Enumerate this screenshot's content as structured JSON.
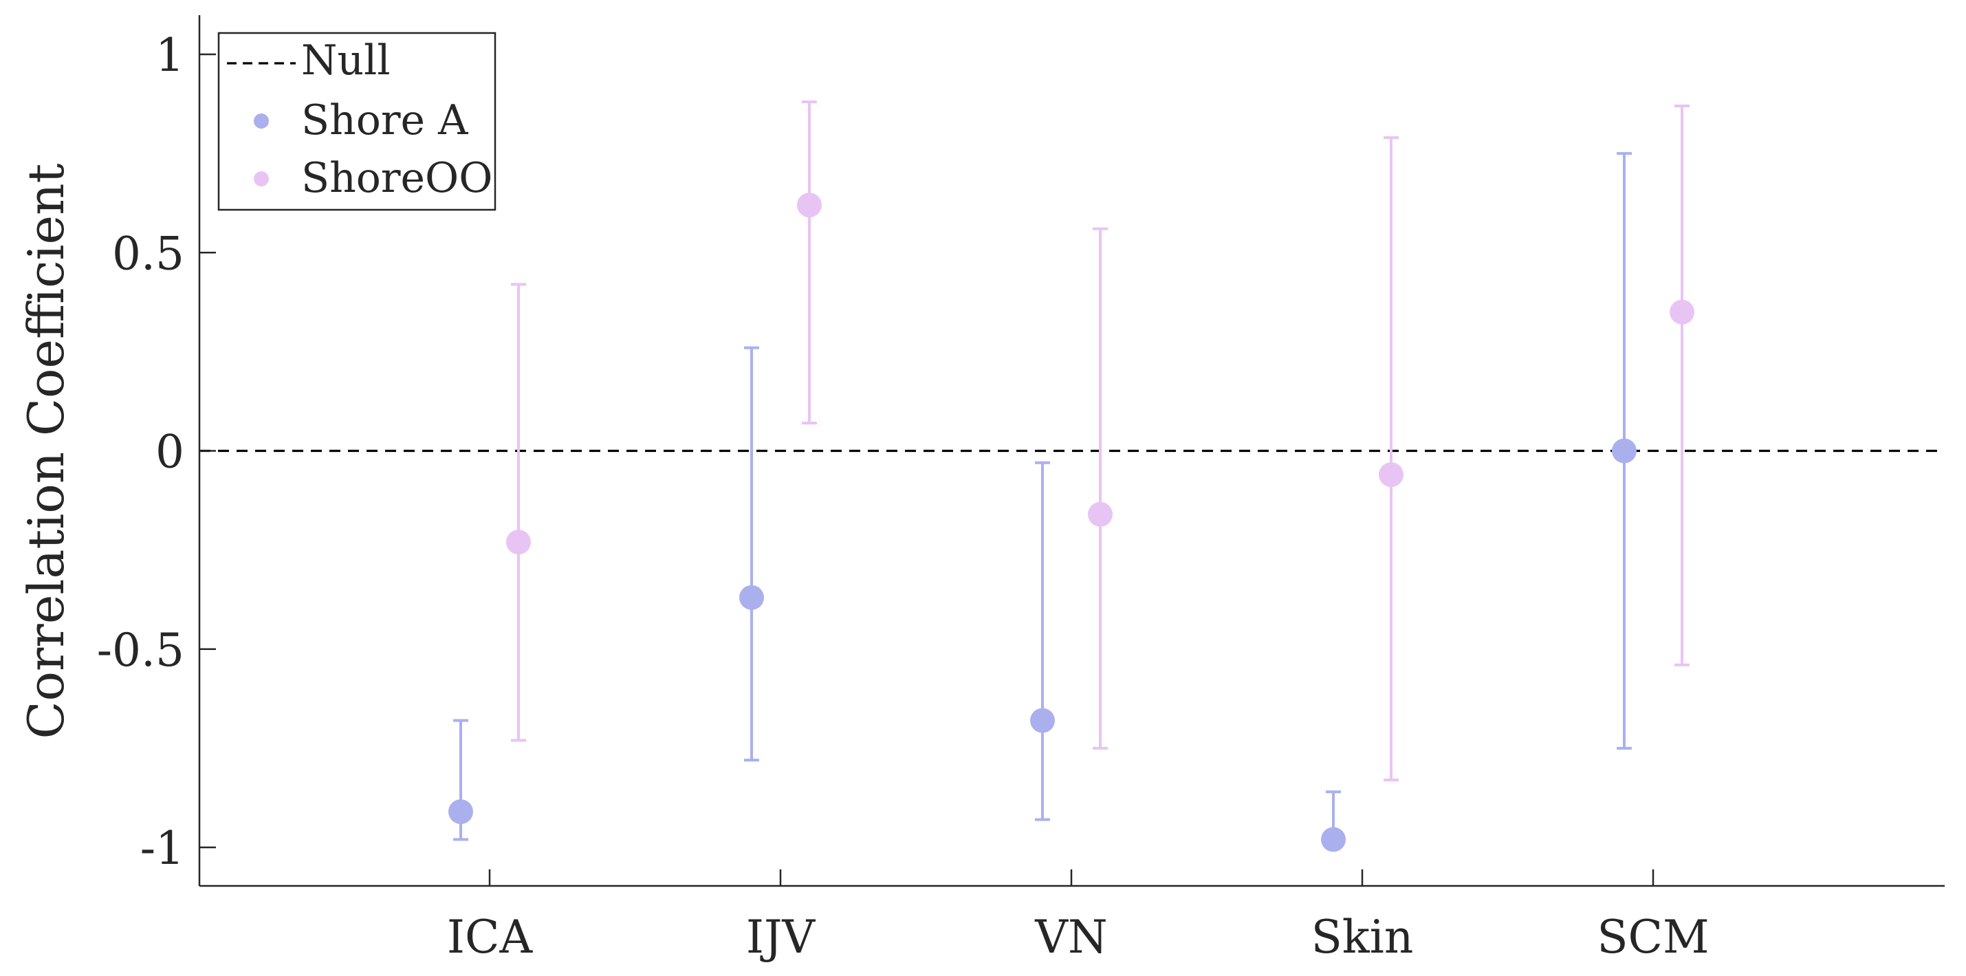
{
  "chart_data": {
    "type": "scatter",
    "title": "",
    "xlabel": "",
    "ylabel": "Correlation Coefficient",
    "categories": [
      "ICA",
      "IJV",
      "VN",
      "Skin",
      "SCM"
    ],
    "ylim": [
      -1.1,
      1.1
    ],
    "yticks": [
      -1,
      -0.5,
      0,
      0.5,
      1
    ],
    "ytick_labels": [
      "-1",
      "-0.5",
      "0",
      "0.5",
      "1"
    ],
    "grid": false,
    "legend_position": "top-left",
    "null_line": {
      "name": "Null",
      "value": 0,
      "color": "#000000"
    },
    "series": [
      {
        "name": "Shore A",
        "color": "#aab0ee",
        "values": [
          -0.91,
          -0.37,
          -0.68,
          -0.98,
          0.0
        ],
        "lower": [
          -0.98,
          -0.78,
          -0.93,
          -0.98,
          -0.75
        ],
        "upper": [
          -0.68,
          0.26,
          -0.03,
          -0.86,
          0.75
        ]
      },
      {
        "name": "ShoreOO",
        "color": "#e8c4f4",
        "values": [
          -0.23,
          0.62,
          -0.16,
          -0.06,
          0.35
        ],
        "lower": [
          -0.73,
          0.07,
          -0.75,
          -0.83,
          -0.54
        ],
        "upper": [
          0.42,
          0.88,
          0.56,
          0.79,
          0.87
        ]
      }
    ]
  }
}
